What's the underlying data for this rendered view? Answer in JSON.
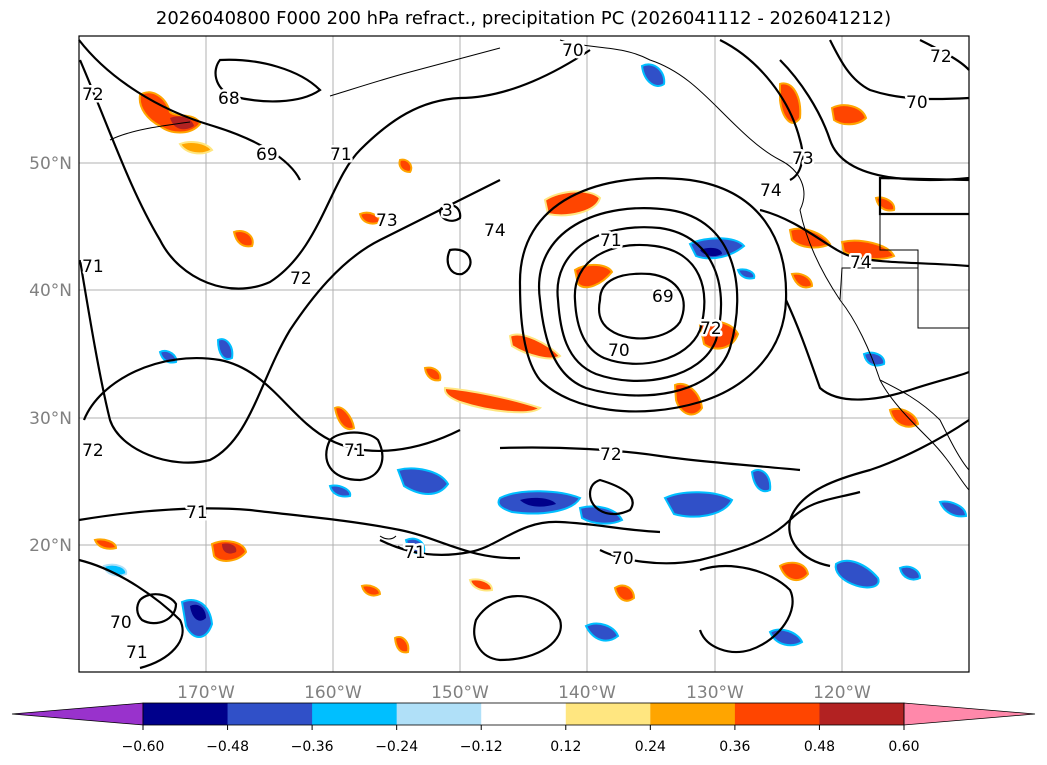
{
  "chart_data": {
    "type": "map",
    "title": "2026040800 F000 200 hPa refract., precipitation PC (2026041112 - 2026041212)",
    "x_ticks": [
      "170°W",
      "160°W",
      "150°W",
      "140°W",
      "130°W",
      "120°W"
    ],
    "y_ticks": [
      "50°N",
      "40°N",
      "30°N",
      "20°N"
    ],
    "lon_range": [
      -180,
      -110
    ],
    "lat_range": [
      10,
      60
    ],
    "gridlines": true,
    "contour_labels": [
      "70",
      "68",
      "69",
      "71",
      "73",
      "3",
      "74",
      "71",
      "69",
      "70",
      "72",
      "72",
      "71",
      "71",
      "71",
      "72",
      "70",
      "70",
      "71",
      "73",
      "74",
      "74",
      "72",
      "70",
      "72",
      "72",
      "71"
    ],
    "colorbar": {
      "ticks": [
        "−0.60",
        "−0.48",
        "−0.36",
        "−0.24",
        "−0.12",
        "0.12",
        "0.24",
        "0.36",
        "0.48",
        "0.60"
      ],
      "levels": [
        -0.6,
        -0.48,
        -0.36,
        -0.24,
        -0.12,
        0.12,
        0.24,
        0.36,
        0.48,
        0.6
      ],
      "colors": [
        "#9932cc",
        "#00008b",
        "#3050c8",
        "#00bfff",
        "#b0e0f8",
        "#ffffff",
        "#ffe680",
        "#ffa500",
        "#ff4500",
        "#b22222",
        "#ff88aa"
      ],
      "extend": "both"
    }
  }
}
